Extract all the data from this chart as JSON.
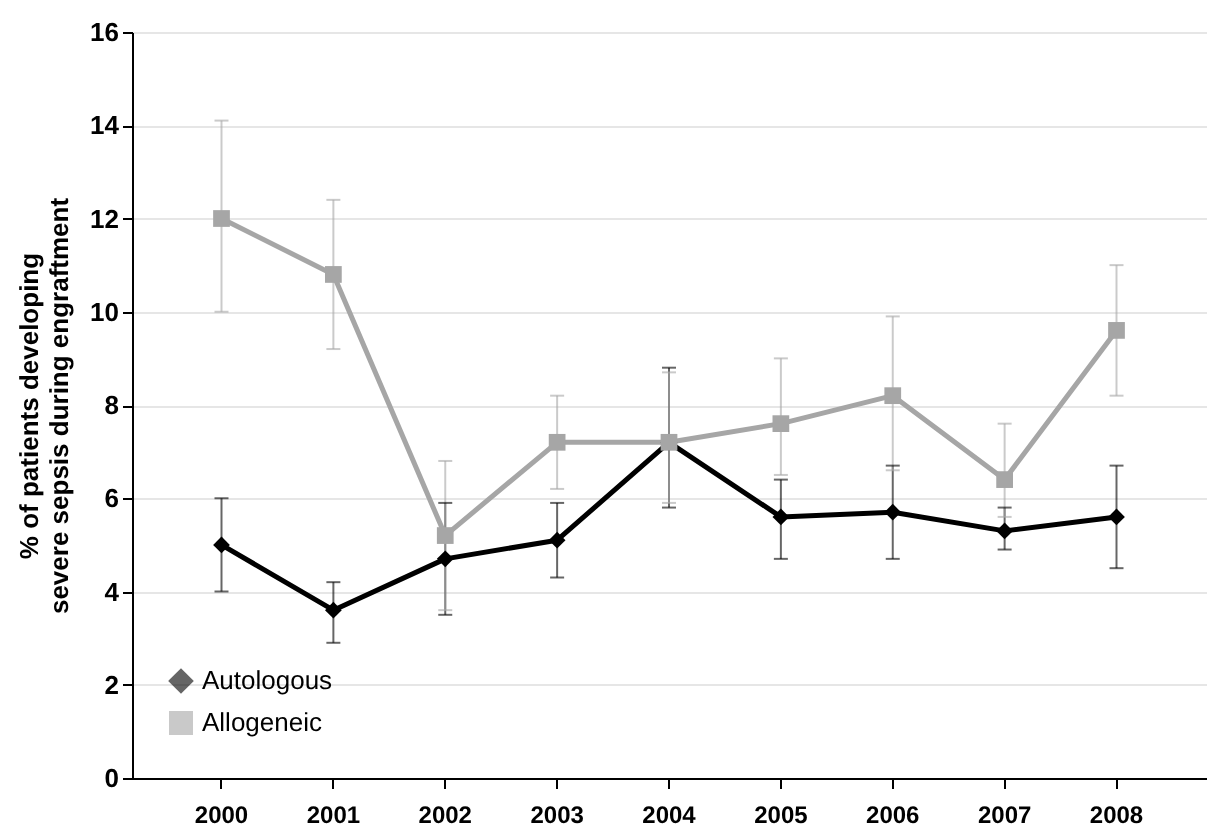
{
  "chart_data": {
    "type": "line",
    "ylabel": "% of patients developing\nsevere sepsis during engraftment",
    "categories": [
      "2000",
      "2001",
      "2002",
      "2003",
      "2004",
      "2005",
      "2006",
      "2007",
      "2008"
    ],
    "ylim": [
      0,
      16
    ],
    "yticks": [
      0,
      2,
      4,
      6,
      8,
      10,
      12,
      14,
      16
    ],
    "grid": "y",
    "legend": "bottom left",
    "series": [
      {
        "name": "Autologous",
        "color": "#000000",
        "marker": "diamond",
        "values": [
          5.0,
          3.6,
          4.7,
          5.1,
          7.2,
          5.6,
          5.7,
          5.3,
          5.6
        ],
        "errors": [
          [
            4.0,
            6.0
          ],
          [
            2.9,
            4.2
          ],
          [
            3.5,
            5.9
          ],
          [
            4.3,
            5.9
          ],
          [
            5.8,
            8.8
          ],
          [
            4.7,
            6.4
          ],
          [
            4.7,
            6.7
          ],
          [
            4.9,
            5.8
          ],
          [
            4.5,
            6.7
          ]
        ]
      },
      {
        "name": "Allogeneic",
        "color": "#a6a6a6",
        "marker": "square",
        "values": [
          12.0,
          10.8,
          5.2,
          7.2,
          7.2,
          7.6,
          8.2,
          6.4,
          9.6
        ],
        "errors": [
          [
            10.0,
            14.1
          ],
          [
            9.2,
            12.4
          ],
          [
            3.6,
            6.8
          ],
          [
            6.2,
            8.2
          ],
          [
            5.9,
            8.7
          ],
          [
            6.5,
            9.0
          ],
          [
            6.6,
            9.9
          ],
          [
            5.6,
            7.6
          ],
          [
            8.2,
            11.0
          ]
        ]
      }
    ]
  }
}
